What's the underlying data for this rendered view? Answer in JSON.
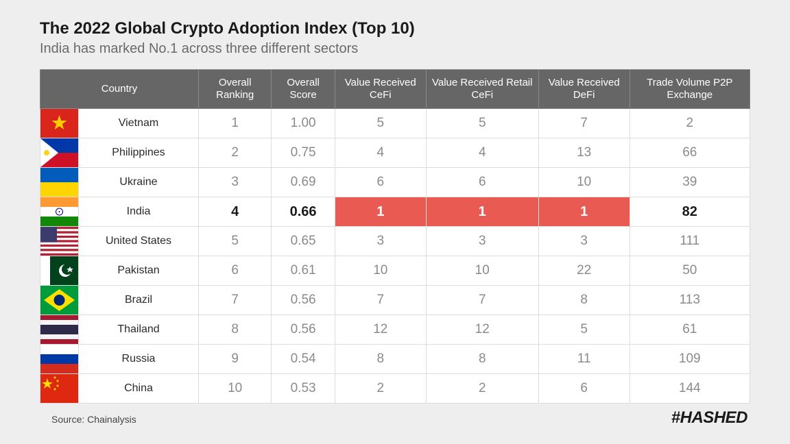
{
  "title": "The 2022 Global Crypto Adoption Index (Top 10)",
  "subtitle": "India has marked No.1 across three different sectors",
  "source": "Source: Chainalysis",
  "logo": "#HASHED",
  "table": {
    "type": "table",
    "background_color": "#ffffff",
    "page_background": "#eeeeee",
    "header_bg": "#666666",
    "header_text_color": "#ffffff",
    "border_color": "#dcdcdc",
    "cell_text_color": "#8a8a8a",
    "highlight_bg": "#e85a52",
    "highlight_text_color": "#ffffff",
    "bold_text_color": "#1a1a1a",
    "columns": [
      "Country",
      "Overall Ranking",
      "Overall Score",
      "Value Received CeFi",
      "Value Received Retail CeFi",
      "Value Received DeFi",
      "Trade Volume P2P Exchange"
    ],
    "highlight_row_index": 3,
    "highlight_red_cols": [
      3,
      4,
      5
    ],
    "rows": [
      {
        "flag": "vn",
        "country": "Vietnam",
        "rank": "1",
        "score": "1.00",
        "cefi": "5",
        "retail": "5",
        "defi": "7",
        "p2p": "2"
      },
      {
        "flag": "ph",
        "country": "Philippines",
        "rank": "2",
        "score": "0.75",
        "cefi": "4",
        "retail": "4",
        "defi": "13",
        "p2p": "66"
      },
      {
        "flag": "ua",
        "country": "Ukraine",
        "rank": "3",
        "score": "0.69",
        "cefi": "6",
        "retail": "6",
        "defi": "10",
        "p2p": "39"
      },
      {
        "flag": "in",
        "country": "India",
        "rank": "4",
        "score": "0.66",
        "cefi": "1",
        "retail": "1",
        "defi": "1",
        "p2p": "82"
      },
      {
        "flag": "us",
        "country": "United States",
        "rank": "5",
        "score": "0.65",
        "cefi": "3",
        "retail": "3",
        "defi": "3",
        "p2p": "111"
      },
      {
        "flag": "pk",
        "country": "Pakistan",
        "rank": "6",
        "score": "0.61",
        "cefi": "10",
        "retail": "10",
        "defi": "22",
        "p2p": "50"
      },
      {
        "flag": "br",
        "country": "Brazil",
        "rank": "7",
        "score": "0.56",
        "cefi": "7",
        "retail": "7",
        "defi": "8",
        "p2p": "113"
      },
      {
        "flag": "th",
        "country": "Thailand",
        "rank": "8",
        "score": "0.56",
        "cefi": "12",
        "retail": "12",
        "defi": "5",
        "p2p": "61"
      },
      {
        "flag": "ru",
        "country": "Russia",
        "rank": "9",
        "score": "0.54",
        "cefi": "8",
        "retail": "8",
        "defi": "11",
        "p2p": "109"
      },
      {
        "flag": "cn",
        "country": "China",
        "rank": "10",
        "score": "0.53",
        "cefi": "2",
        "retail": "2",
        "defi": "6",
        "p2p": "144"
      }
    ]
  },
  "flags": {
    "vn": "<svg viewBox='0 0 55 42'><rect width='55' height='42' fill='#da251d'/><polygon points='27.5,9 30.2,17 38.5,17 31.8,22 34.3,30 27.5,25.2 20.7,30 23.2,22 16.5,17 24.8,17' fill='#ffcd00'/></svg>",
    "ph": "<svg viewBox='0 0 55 42'><rect width='55' height='21' fill='#0038a8'/><rect y='21' width='55' height='21' fill='#ce1126'/><polygon points='0,0 26,21 0,42' fill='#fff'/><circle cx='9' cy='21' r='4' fill='#fcd116'/></svg>",
    "ua": "<svg viewBox='0 0 55 42'><rect width='55' height='21' fill='#005bbb'/><rect y='21' width='55' height='21' fill='#ffd500'/></svg>",
    "in": "<svg viewBox='0 0 55 42'><rect width='55' height='14' fill='#ff9933'/><rect y='14' width='55' height='14' fill='#fff'/><rect y='28' width='55' height='14' fill='#138808'/><circle cx='27.5' cy='21' r='5' fill='none' stroke='#000080' stroke-width='1'/><circle cx='27.5' cy='21' r='1' fill='#000080'/></svg>",
    "us": "<svg viewBox='0 0 55 42'><rect width='55' height='42' fill='#b22234'/><rect y='3.2' width='55' height='3.2' fill='#fff'/><rect y='9.7' width='55' height='3.2' fill='#fff'/><rect y='16.1' width='55' height='3.2' fill='#fff'/><rect y='22.6' width='55' height='3.2' fill='#fff'/><rect y='29' width='55' height='3.2' fill='#fff'/><rect y='35.5' width='55' height='3.2' fill='#fff'/><rect width='24' height='22.6' fill='#3c3b6e'/></svg>",
    "pk": "<svg viewBox='0 0 55 42'><rect width='55' height='42' fill='#01411c'/><rect width='14' height='42' fill='#fff'/><circle cx='36' cy='21' r='9' fill='#fff'/><circle cx='39' cy='19' r='8' fill='#01411c'/><polygon points='43,15 44.5,18 48,18 45.2,20 46.5,23.5 43,21.3 39.5,23.5 40.8,20 38,18 41.5,18' fill='#fff'/></svg>",
    "br": "<svg viewBox='0 0 55 42'><rect width='55' height='42' fill='#009b3a'/><polygon points='27.5,5 50,21 27.5,37 5,21' fill='#fedf00'/><circle cx='27.5' cy='21' r='8' fill='#002776'/></svg>",
    "th": "<svg viewBox='0 0 55 42'><rect width='55' height='42' fill='#a51931'/><rect y='7' width='55' height='28' fill='#f4f5f8'/><rect y='14' width='55' height='14' fill='#2d2a4a'/></svg>",
    "ru": "<svg viewBox='0 0 55 42'><rect width='55' height='14' fill='#fff'/><rect y='14' width='55' height='14' fill='#0039a6'/><rect y='28' width='55' height='14' fill='#d52b1e'/></svg>",
    "cn": "<svg viewBox='0 0 55 42'><rect width='55' height='42' fill='#de2910'/><polygon points='10,6 12,12 18,12 13,15.5 15,21 10,17.5 5,21 7,15.5 2,12 8,12' fill='#ffde00'/><circle cx='21' cy='5' r='1.5' fill='#ffde00'/><circle cx='25' cy='10' r='1.5' fill='#ffde00'/><circle cx='25' cy='17' r='1.5' fill='#ffde00'/><circle cx='21' cy='22' r='1.5' fill='#ffde00'/></svg>"
  }
}
